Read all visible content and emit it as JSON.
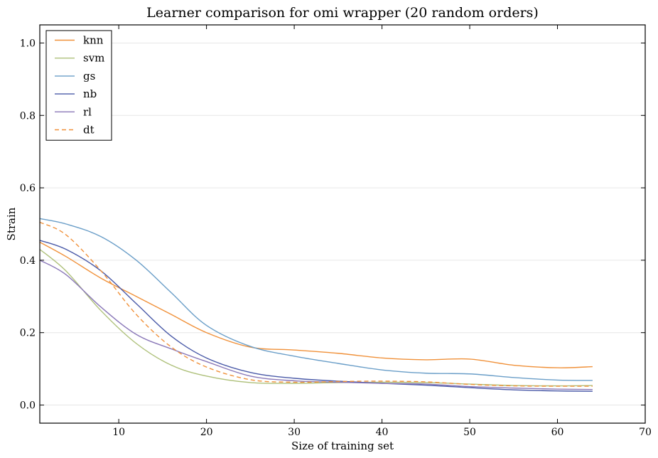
{
  "chart_data": {
    "type": "line",
    "title": "Learner comparison for omi wrapper (20 random orders)",
    "xlabel": "Size of training set",
    "ylabel": "Strain",
    "xlim": [
      1,
      70
    ],
    "ylim": [
      -0.05,
      1.05
    ],
    "xticks": [
      10,
      20,
      30,
      40,
      50,
      60,
      70
    ],
    "yticks": [
      0.0,
      0.2,
      0.4,
      0.6,
      0.8,
      1.0
    ],
    "ytick_labels": [
      "0.0",
      "0.2",
      "0.4",
      "0.6",
      "0.8",
      "1.0"
    ],
    "grid": "horizontal",
    "legend_position": "top-left",
    "x": [
      1,
      4,
      8,
      12,
      16,
      20,
      25,
      30,
      35,
      40,
      45,
      50,
      55,
      60,
      64
    ],
    "series": [
      {
        "name": "knn",
        "color": "#f0913a",
        "dash": "solid",
        "values": [
          0.45,
          0.41,
          0.35,
          0.3,
          0.25,
          0.2,
          0.16,
          0.152,
          0.143,
          0.13,
          0.125,
          0.127,
          0.11,
          0.103,
          0.106
        ]
      },
      {
        "name": "svm",
        "color": "#aec07a",
        "dash": "solid",
        "values": [
          0.43,
          0.37,
          0.26,
          0.17,
          0.11,
          0.08,
          0.062,
          0.06,
          0.062,
          0.063,
          0.062,
          0.058,
          0.054,
          0.053,
          0.054
        ]
      },
      {
        "name": "gs",
        "color": "#6a9ec8",
        "dash": "solid",
        "values": [
          0.515,
          0.5,
          0.465,
          0.4,
          0.31,
          0.22,
          0.162,
          0.135,
          0.115,
          0.097,
          0.088,
          0.086,
          0.076,
          0.069,
          0.068
        ]
      },
      {
        "name": "nb",
        "color": "#4a5aa8",
        "dash": "solid",
        "values": [
          0.455,
          0.43,
          0.37,
          0.28,
          0.19,
          0.13,
          0.09,
          0.074,
          0.066,
          0.06,
          0.055,
          0.048,
          0.042,
          0.039,
          0.038
        ]
      },
      {
        "name": "rl",
        "color": "#8a78b8",
        "dash": "solid",
        "values": [
          0.4,
          0.36,
          0.27,
          0.195,
          0.155,
          0.12,
          0.08,
          0.067,
          0.063,
          0.06,
          0.058,
          0.051,
          0.047,
          0.044,
          0.043
        ]
      },
      {
        "name": "dt",
        "color": "#f0913a",
        "dash": "dashed",
        "values": [
          0.505,
          0.47,
          0.37,
          0.25,
          0.16,
          0.105,
          0.07,
          0.063,
          0.065,
          0.066,
          0.064,
          0.057,
          0.053,
          0.052,
          0.052
        ]
      }
    ]
  }
}
